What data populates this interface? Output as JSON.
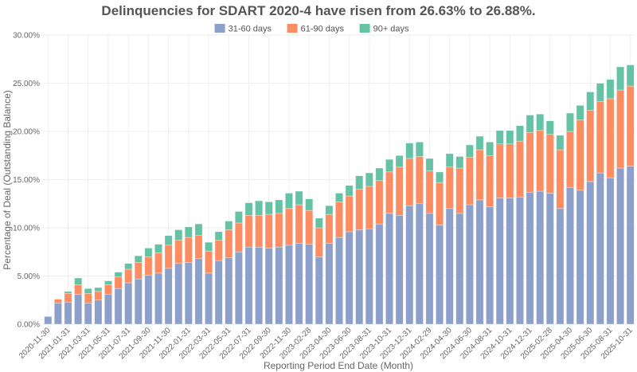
{
  "chart_data": {
    "type": "bar",
    "stacked": true,
    "title": "Delinquencies for SDART 2020-4 have risen from 26.63% to 26.88%.",
    "xlabel": "Reporting Period End Date (Month)",
    "ylabel": "Percentage of Deal (Outstanding Balance)",
    "ylim": [
      0,
      30
    ],
    "yticks": [
      "0.00%",
      "5.00%",
      "10.00%",
      "15.00%",
      "20.00%",
      "25.00%",
      "30.00%"
    ],
    "grid": true,
    "legend_position": "top-center",
    "categories": [
      "2020-11-30",
      "2020-12-31",
      "2021-01-31",
      "2021-02-28",
      "2021-03-31",
      "2021-04-30",
      "2021-05-31",
      "2021-06-30",
      "2021-07-31",
      "2021-08-31",
      "2021-09-30",
      "2021-10-31",
      "2021-11-30",
      "2021-12-31",
      "2022-01-31",
      "2022-02-28",
      "2022-03-31",
      "2022-04-30",
      "2022-05-31",
      "2022-06-30",
      "2022-07-31",
      "2022-08-31",
      "2022-09-30",
      "2022-10-31",
      "2022-11-30",
      "2023-01-31",
      "2023-02-28",
      "2023-03-31",
      "2023-04-30",
      "2023-05-31",
      "2023-06-30",
      "2023-07-31",
      "2023-08-31",
      "2023-09-30",
      "2023-10-31",
      "2023-11-30",
      "2023-12-31",
      "2024-01-31",
      "2024-02-29",
      "2024-03-31",
      "2024-04-30",
      "2024-05-31",
      "2024-06-30",
      "2024-07-31",
      "2024-08-31",
      "2024-09-30",
      "2024-10-31",
      "2024-11-30",
      "2024-12-31",
      "2025-01-31",
      "2025-02-28",
      "2025-03-31",
      "2025-04-30",
      "2025-05-31",
      "2025-06-30",
      "2025-07-31",
      "2025-08-31",
      "2025-09-30",
      "2025-10-31"
    ],
    "series": [
      {
        "name": "31-60 days",
        "color": "#8da0cb",
        "values": [
          0.8,
          2.2,
          2.3,
          3.1,
          2.2,
          2.5,
          3.1,
          3.7,
          4.3,
          4.7,
          5.1,
          5.3,
          5.8,
          6.3,
          6.4,
          6.8,
          5.3,
          6.6,
          6.9,
          7.5,
          8.0,
          8.0,
          7.9,
          8.0,
          8.2,
          8.4,
          8.3,
          7.0,
          8.4,
          9.0,
          9.6,
          9.8,
          9.9,
          10.4,
          11.5,
          11.3,
          12.3,
          12.5,
          11.5,
          10.3,
          12.0,
          11.5,
          12.4,
          12.9,
          12.2,
          13.1,
          13.1,
          13.2,
          13.7,
          13.8,
          13.6,
          12.0,
          14.2,
          13.9,
          14.8,
          15.7,
          15.2,
          16.2,
          16.4
        ]
      },
      {
        "name": "61-90 days",
        "color": "#fc8d62",
        "values": [
          0,
          0.4,
          0.9,
          1.0,
          1.0,
          0.9,
          1.0,
          1.2,
          1.4,
          1.7,
          1.9,
          2.1,
          2.4,
          2.4,
          2.6,
          2.4,
          2.3,
          2.1,
          2.9,
          3.0,
          3.3,
          3.3,
          3.5,
          3.5,
          3.8,
          4.0,
          3.5,
          3.0,
          3.0,
          3.7,
          3.7,
          4.2,
          4.4,
          4.5,
          4.3,
          5.0,
          4.9,
          4.9,
          4.4,
          4.4,
          4.3,
          4.7,
          4.9,
          5.2,
          5.3,
          5.6,
          5.6,
          5.8,
          6.2,
          6.3,
          6.1,
          6.1,
          5.8,
          7.3,
          7.4,
          7.4,
          8.2,
          8.1,
          8.3
        ]
      },
      {
        "name": "90+ days",
        "color": "#66c2a5",
        "values": [
          0,
          0,
          0.2,
          0.7,
          0.5,
          0.4,
          0.4,
          0.5,
          0.6,
          0.7,
          0.9,
          0.9,
          1.0,
          1.1,
          1.1,
          1.2,
          0.9,
          0.9,
          0.9,
          1.2,
          1.3,
          1.5,
          1.3,
          1.4,
          1.6,
          1.4,
          1.2,
          1.0,
          0.9,
          0.9,
          1.1,
          1.4,
          1.4,
          1.3,
          1.3,
          1.2,
          1.6,
          1.5,
          1.3,
          1.1,
          1.4,
          1.2,
          1.3,
          1.4,
          1.4,
          1.4,
          1.4,
          1.6,
          1.8,
          1.7,
          1.4,
          1.5,
          1.9,
          1.5,
          1.9,
          1.9,
          2.0,
          2.4,
          2.2
        ]
      }
    ]
  }
}
